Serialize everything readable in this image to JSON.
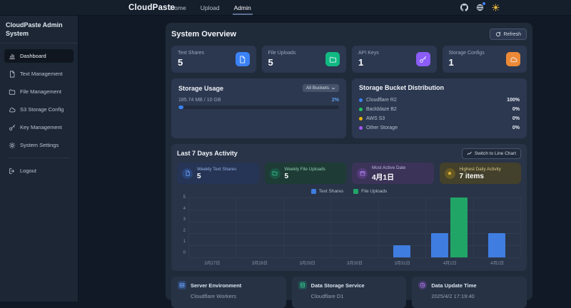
{
  "navbar": {
    "brand": "CloudPaste",
    "links": [
      {
        "label": "Home",
        "active": false
      },
      {
        "label": "Upload",
        "active": false
      },
      {
        "label": "Admin",
        "active": true
      }
    ],
    "icons": [
      "github-icon",
      "language-icon",
      "theme-sun-icon"
    ]
  },
  "sidebar": {
    "title": "CloudPaste Admin System",
    "items": [
      {
        "label": "Dashboard",
        "icon": "chart-bar-icon",
        "active": true
      },
      {
        "label": "Text Management",
        "icon": "document-icon",
        "active": false
      },
      {
        "label": "File Management",
        "icon": "folder-icon",
        "active": false
      },
      {
        "label": "S3 Storage Config",
        "icon": "cloud-icon",
        "active": false
      },
      {
        "label": "Key Management",
        "icon": "key-icon",
        "active": false
      },
      {
        "label": "System Settings",
        "icon": "gear-icon",
        "active": false
      }
    ],
    "logout": {
      "label": "Logout",
      "icon": "logout-icon"
    }
  },
  "overview": {
    "title": "System Overview",
    "refresh_label": "Refresh",
    "stats": [
      {
        "label": "Text Shares",
        "value": "5",
        "icon": "document-icon",
        "color": "#3b82f6"
      },
      {
        "label": "File Uploads",
        "value": "5",
        "icon": "folder-icon",
        "color": "#10b981"
      },
      {
        "label": "API Keys",
        "value": "1",
        "icon": "key-icon",
        "color": "#8b5cf6"
      },
      {
        "label": "Storage Configs",
        "value": "1",
        "icon": "cloud-icon",
        "color": "#ed8936"
      }
    ]
  },
  "storage_usage": {
    "title": "Storage Usage",
    "bucket_filter": "All Buckets",
    "usage_text": "185.74 MB / 10 GB",
    "percent_text": "2%",
    "percent": 2
  },
  "bucket_distribution": {
    "title": "Storage Bucket Distribution",
    "rows": [
      {
        "label": "Cloudflare R2",
        "value": "100%",
        "color": "#3b82f6"
      },
      {
        "label": "Backblaze B2",
        "value": "0%",
        "color": "#22c55e"
      },
      {
        "label": "AWS S3",
        "value": "0%",
        "color": "#eab308"
      },
      {
        "label": "Other Storage",
        "value": "0%",
        "color": "#a855f7"
      }
    ]
  },
  "activity": {
    "title": "Last 7 Days Activity",
    "switch_label": "Switch to Line Chart",
    "mini_stats": [
      {
        "label": "Weekly Text Shares",
        "value": "5",
        "theme": "blue",
        "icon": "document-icon"
      },
      {
        "label": "Weekly File Uploads",
        "value": "5",
        "theme": "green",
        "icon": "folder-icon"
      },
      {
        "label": "Most Active Date",
        "value": "4月1日",
        "theme": "purple",
        "icon": "calendar-icon"
      },
      {
        "label": "Highest Daily Activity",
        "value": "7 items",
        "theme": "yellow",
        "icon": "star-icon"
      }
    ]
  },
  "chart_data": {
    "type": "bar",
    "categories": [
      "3月27日",
      "3月28日",
      "3月29日",
      "3月30日",
      "3月31日",
      "4月1日",
      "4月2日"
    ],
    "series": [
      {
        "name": "Text Shares",
        "color": "#3f7de0",
        "values": [
          0,
          0,
          0,
          0,
          1,
          2,
          2
        ]
      },
      {
        "name": "File Uploads",
        "color": "#21a567",
        "values": [
          0,
          0,
          0,
          0,
          0,
          5,
          0
        ]
      }
    ],
    "title": "Last 7 Days Activity",
    "xlabel": "",
    "ylabel": "",
    "ylim": [
      0,
      5
    ],
    "yticks": [
      0,
      1,
      2,
      3,
      4,
      5
    ],
    "legend_position": "top",
    "grid": true
  },
  "footer_cards": [
    {
      "label": "Server Environment",
      "value": "Cloudflare Workers",
      "icon": "server-icon",
      "theme": "blue"
    },
    {
      "label": "Data Storage Service",
      "value": "Cloudflare D1",
      "icon": "database-icon",
      "theme": "green"
    },
    {
      "label": "Data Update Time",
      "value": "2025/4/2 17:19:40",
      "icon": "clock-icon",
      "theme": "purple"
    }
  ]
}
